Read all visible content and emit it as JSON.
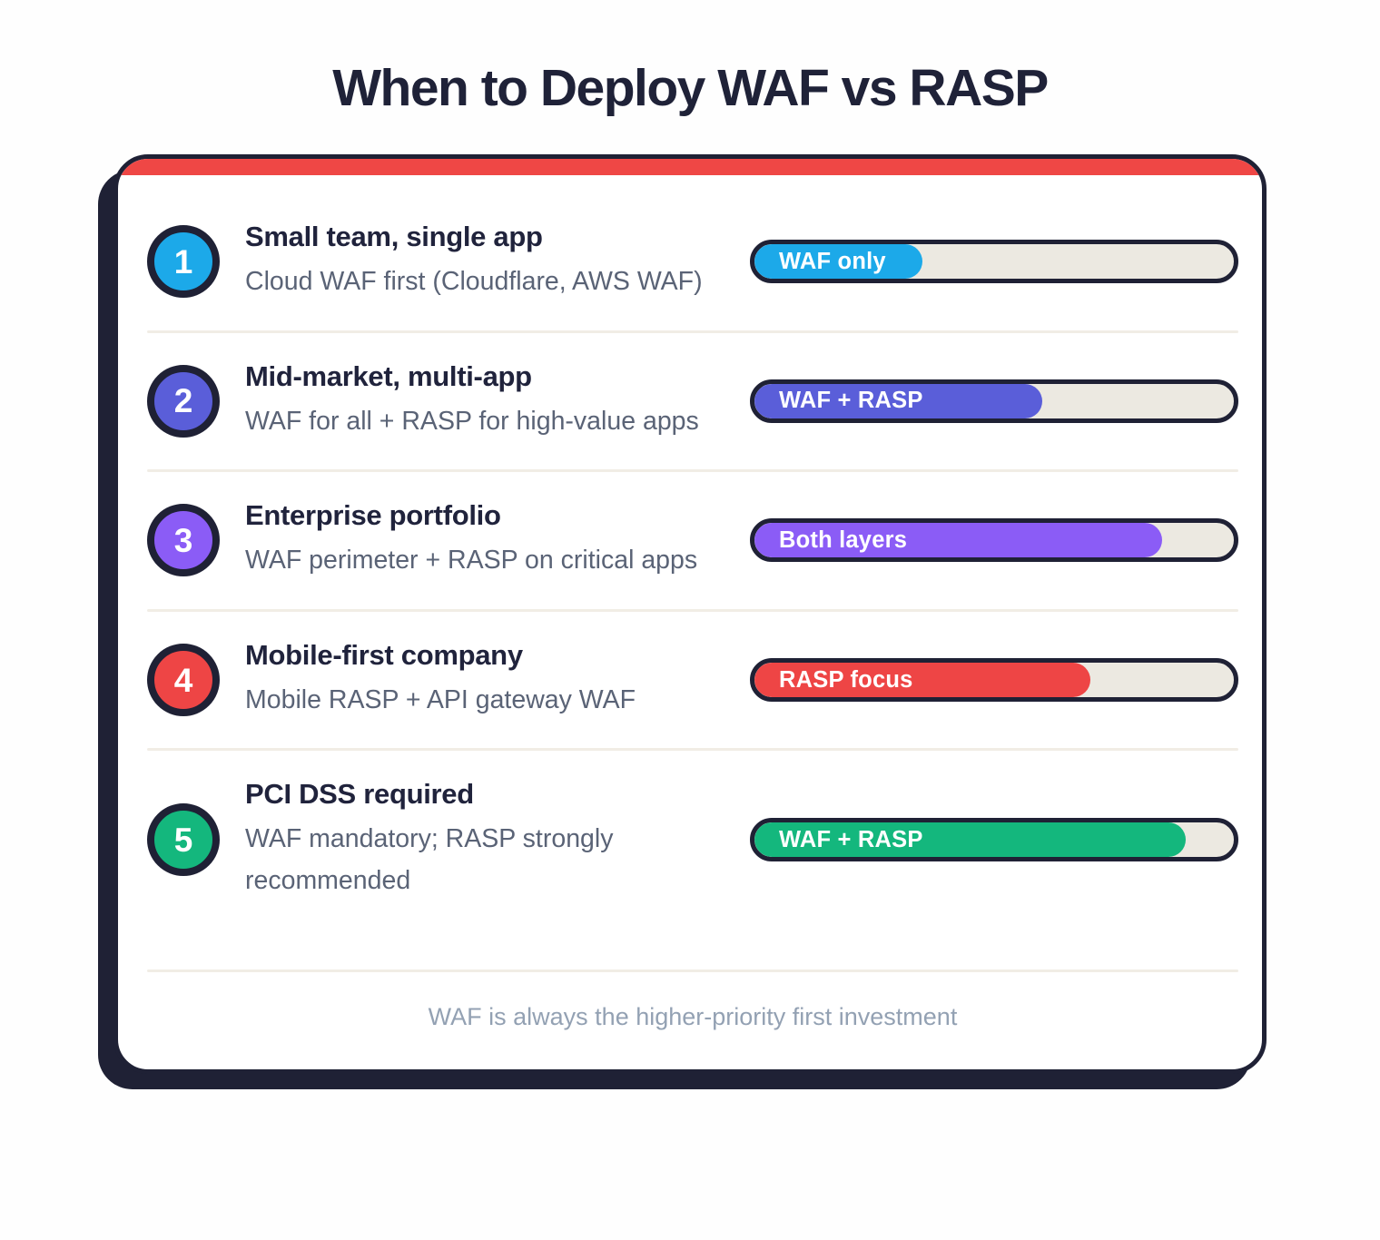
{
  "title": "When to Deploy WAF vs RASP",
  "footer": "WAF is always the higher-priority first investment",
  "colors": {
    "navy": "#1f2135",
    "card_accent_red": "#ef4745",
    "track": "#ece9e1",
    "divider": "#f1ede5",
    "description_text": "#5a6376",
    "footer_text": "#93a1b3"
  },
  "rows": [
    {
      "num": "1",
      "title": "Small team, single app",
      "desc": "Cloud WAF first (Cloudflare, AWS WAF)",
      "color": "#1ca9e9",
      "bar": {
        "label": "WAF only",
        "percent": 35
      }
    },
    {
      "num": "2",
      "title": "Mid-market, multi-app",
      "desc": "WAF for all + RASP for high-value apps",
      "color": "#5a5ed9",
      "bar": {
        "label": "WAF + RASP",
        "percent": 60
      }
    },
    {
      "num": "3",
      "title": "Enterprise portfolio",
      "desc": "WAF perimeter + RASP on critical apps",
      "color": "#8b5cf6",
      "bar": {
        "label": "Both layers",
        "percent": 85
      }
    },
    {
      "num": "4",
      "title": "Mobile-first company",
      "desc": "Mobile RASP + API gateway WAF",
      "color": "#ee4545",
      "bar": {
        "label": "RASP focus",
        "percent": 70
      }
    },
    {
      "num": "5",
      "title": "PCI DSS required",
      "desc": "WAF mandatory; RASP strongly recommended",
      "color": "#14b77d",
      "bar": {
        "label": "WAF + RASP",
        "percent": 90
      }
    }
  ]
}
